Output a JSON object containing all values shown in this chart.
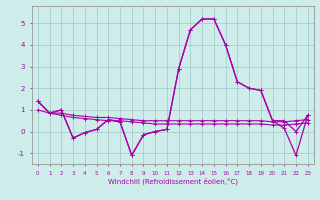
{
  "xlabel": "Windchill (Refroidissement éolien,°C)",
  "background_color": "#ceecea",
  "grid_color": "#a0c8c4",
  "line_color": "#aa00aa",
  "x_values": [
    0,
    1,
    2,
    3,
    4,
    5,
    6,
    7,
    8,
    9,
    10,
    11,
    12,
    13,
    14,
    15,
    16,
    17,
    18,
    19,
    20,
    21,
    22,
    23
  ],
  "s1": [
    1.4,
    0.85,
    0.85,
    0.75,
    0.7,
    0.65,
    0.65,
    0.6,
    0.55,
    0.5,
    0.5,
    0.5,
    0.5,
    0.5,
    0.5,
    0.5,
    0.5,
    0.5,
    0.5,
    0.5,
    0.45,
    0.45,
    0.5,
    0.55
  ],
  "s2": [
    1.0,
    0.85,
    0.75,
    0.65,
    0.6,
    0.55,
    0.5,
    0.5,
    0.45,
    0.4,
    0.35,
    0.35,
    0.35,
    0.35,
    0.35,
    0.35,
    0.35,
    0.35,
    0.35,
    0.35,
    0.3,
    0.3,
    0.35,
    0.4
  ],
  "s3": [
    1.4,
    0.85,
    1.0,
    -0.3,
    -0.05,
    0.1,
    0.55,
    0.45,
    -1.1,
    -0.15,
    0.0,
    0.1,
    2.9,
    4.7,
    5.2,
    5.2,
    4.0,
    2.3,
    2.0,
    1.9,
    0.5,
    0.5,
    0.0,
    0.75
  ],
  "s4": [
    1.4,
    0.85,
    1.0,
    -0.3,
    -0.05,
    0.1,
    0.55,
    0.45,
    -1.1,
    -0.15,
    0.0,
    0.1,
    2.9,
    4.7,
    5.2,
    5.2,
    4.0,
    2.3,
    2.0,
    1.9,
    0.5,
    0.15,
    -1.1,
    0.75
  ],
  "ylim": [
    -1.5,
    5.8
  ],
  "xlim": [
    -0.5,
    23.5
  ],
  "yticks": [
    -1,
    0,
    1,
    2,
    3,
    4,
    5
  ]
}
